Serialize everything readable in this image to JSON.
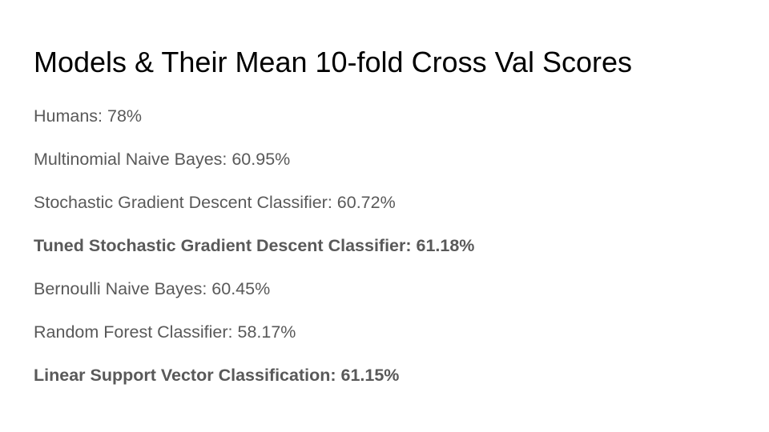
{
  "slide": {
    "title": "Models & Their Mean 10-fold Cross Val Scores",
    "items": [
      {
        "text": "Humans: 78%",
        "bold": false
      },
      {
        "text": "Multinomial Naive Bayes: 60.95%",
        "bold": false
      },
      {
        "text": "Stochastic Gradient Descent Classifier: 60.72%",
        "bold": false
      },
      {
        "text": "Tuned Stochastic Gradient Descent Classifier: 61.18%",
        "bold": true
      },
      {
        "text": "Bernoulli Naive Bayes: 60.45%",
        "bold": false
      },
      {
        "text": "Random Forest Classifier: 58.17%",
        "bold": false
      },
      {
        "text": "Linear Support Vector Classification: 61.15%",
        "bold": true
      }
    ],
    "colors": {
      "title": "#000000",
      "body": "#595959",
      "background": "#ffffff"
    }
  }
}
